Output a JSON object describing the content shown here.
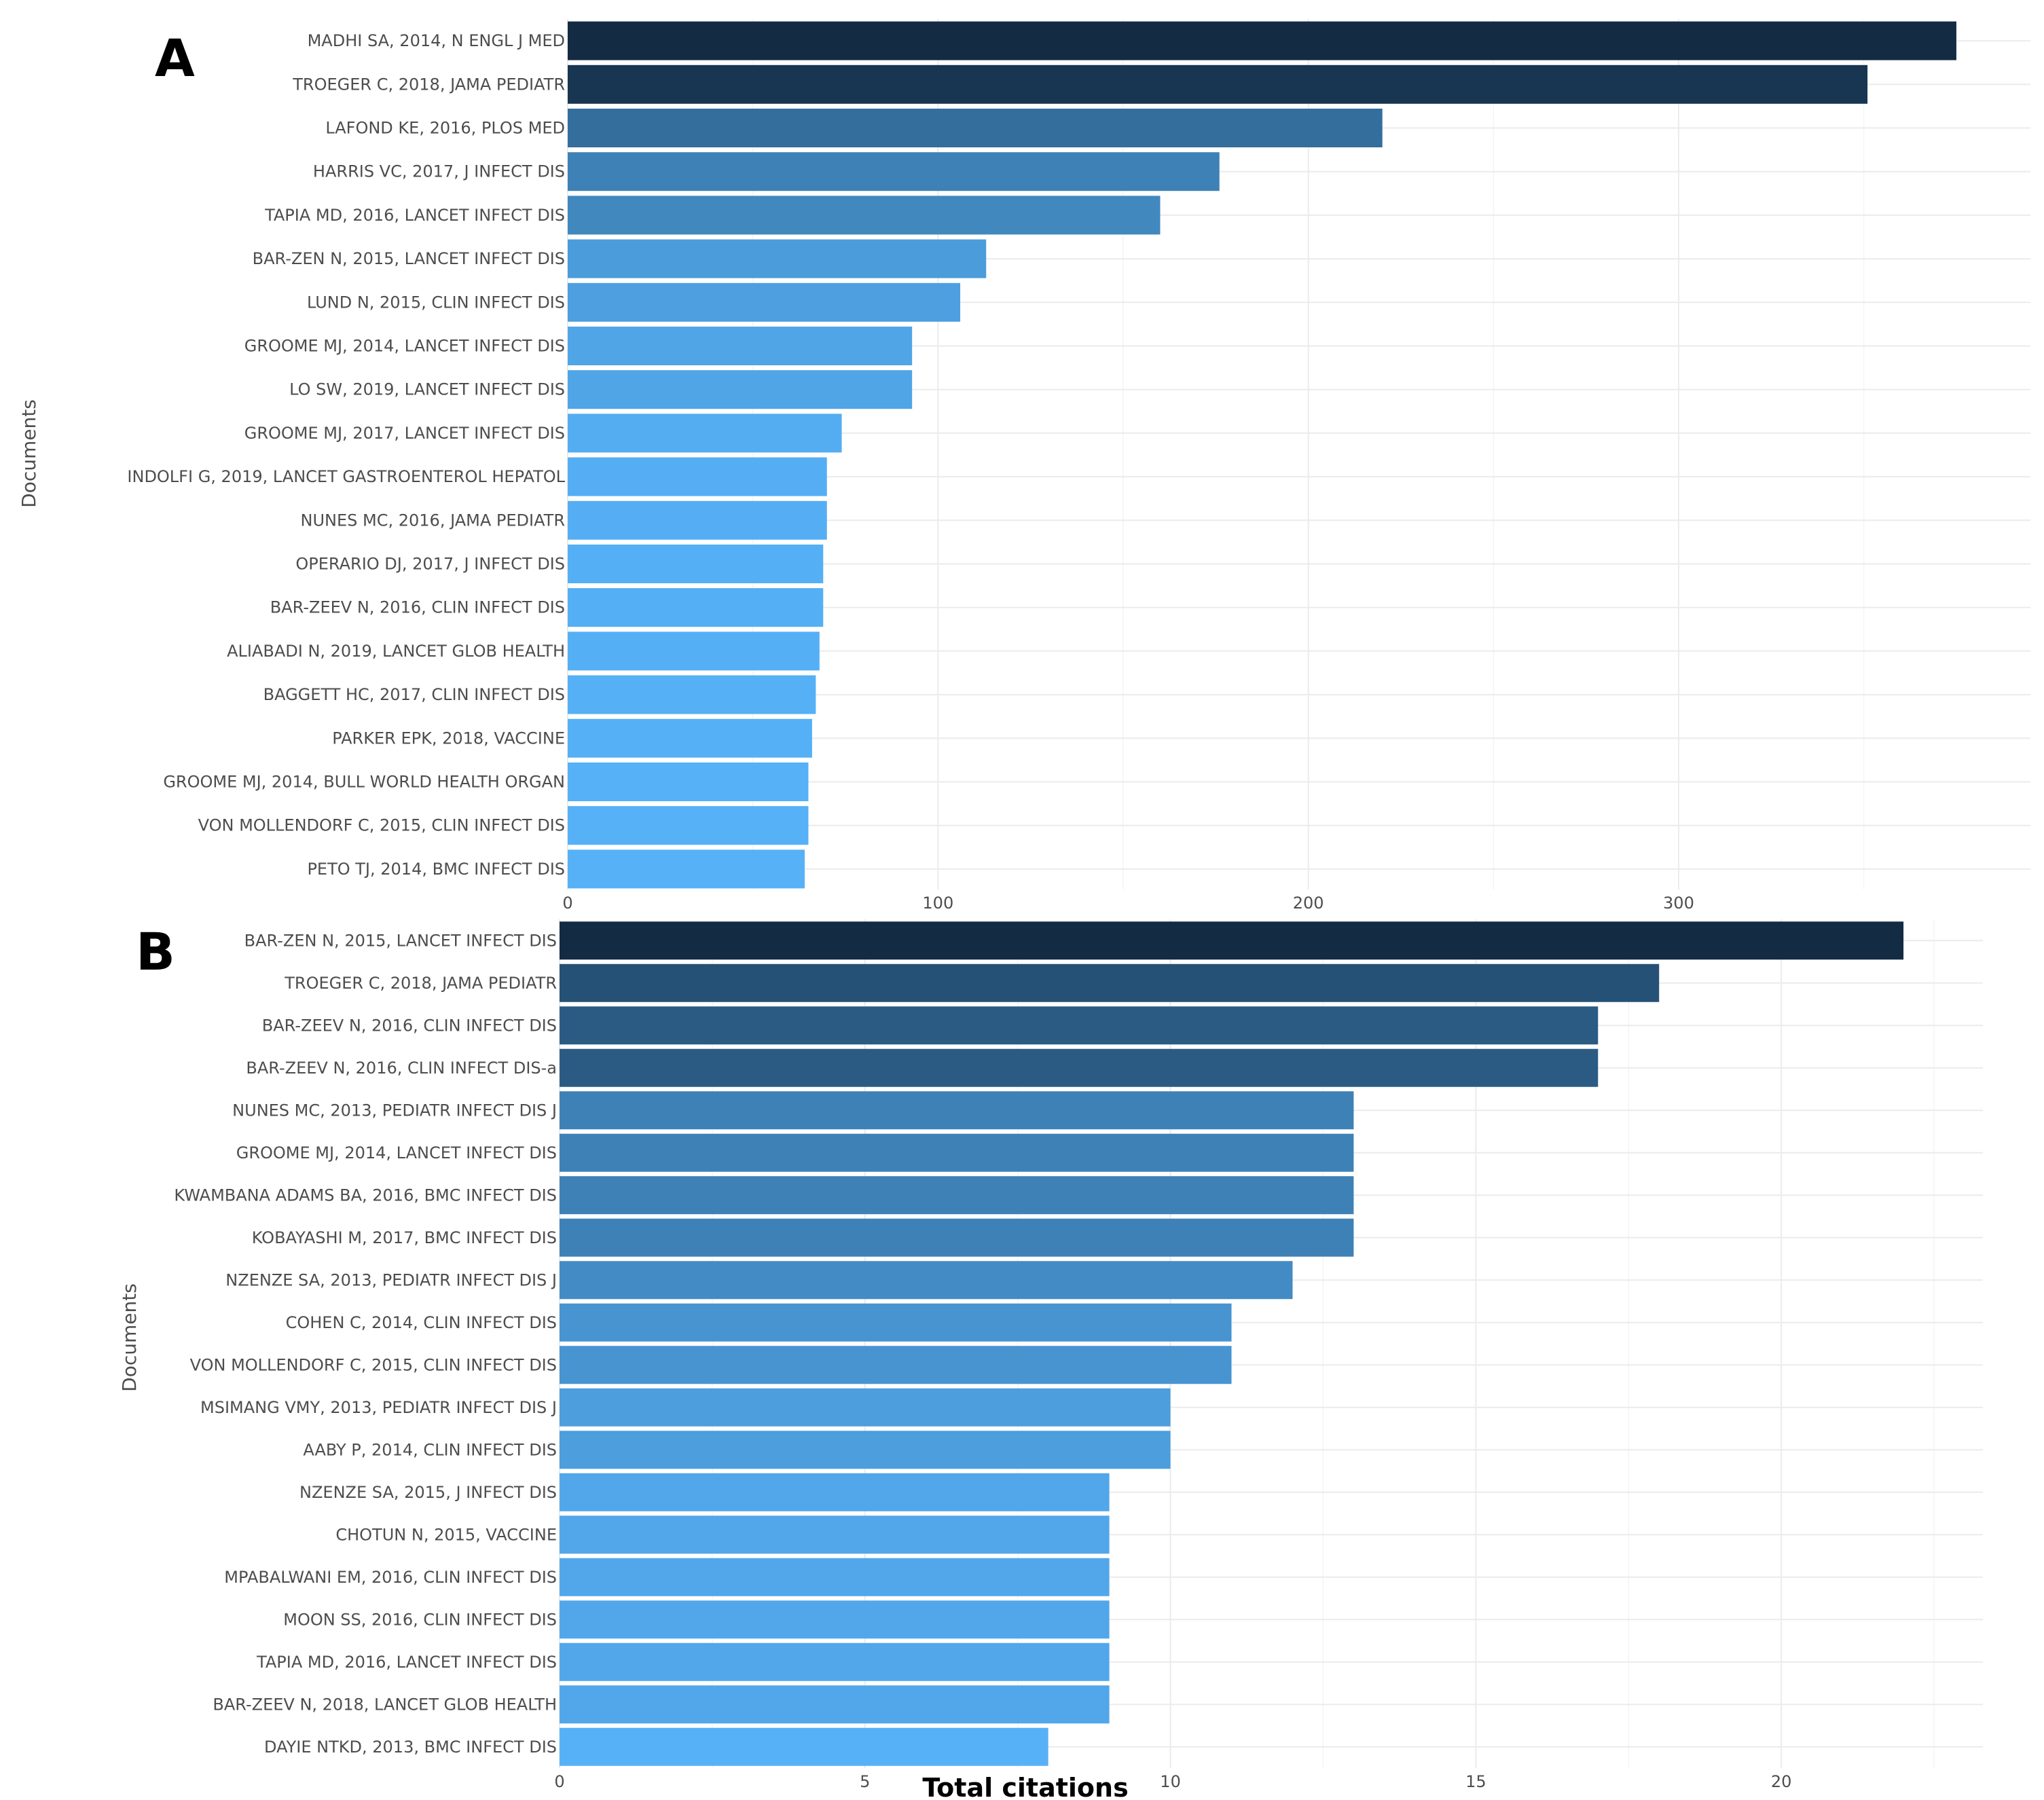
{
  "chart_data": [
    {
      "panel": "A",
      "type": "bar",
      "orientation": "horizontal",
      "ylabel": "Documents",
      "xlim": [
        0,
        395
      ],
      "xticks": [
        0,
        100,
        200,
        300
      ],
      "categories": [
        "MADHI SA, 2014, N ENGL J MED",
        "TROEGER C, 2018, JAMA PEDIATR",
        "LAFOND KE, 2016, PLOS MED",
        "HARRIS VC, 2017, J INFECT DIS",
        "TAPIA MD, 2016, LANCET INFECT DIS",
        "BAR-ZEN N, 2015, LANCET INFECT DIS",
        "LUND N, 2015, CLIN INFECT DIS",
        "GROOME MJ, 2014, LANCET INFECT DIS",
        "LO SW, 2019, LANCET INFECT DIS",
        "GROOME MJ, 2017, LANCET INFECT DIS",
        "INDOLFI G, 2019, LANCET GASTROENTEROL HEPATOL",
        "NUNES MC, 2016, JAMA PEDIATR",
        "OPERARIO DJ, 2017, J INFECT DIS",
        "BAR-ZEEV N, 2016, CLIN INFECT DIS",
        "ALIABADI N, 2019, LANCET GLOB HEALTH",
        "BAGGETT HC, 2017, CLIN INFECT DIS",
        "PARKER EPK, 2018, VACCINE",
        "GROOME MJ, 2014, BULL WORLD HEALTH ORGAN",
        "VON MOLLENDORF C, 2015, CLIN INFECT DIS",
        "PETO TJ, 2014, BMC INFECT DIS"
      ],
      "values": [
        375,
        351,
        220,
        176,
        160,
        113,
        106,
        93,
        93,
        74,
        70,
        70,
        69,
        69,
        68,
        67,
        66,
        65,
        65,
        64
      ]
    },
    {
      "panel": "B",
      "type": "bar",
      "orientation": "horizontal",
      "xlabel": "Total citations",
      "ylabel": "Documents",
      "xlim": [
        0,
        23.3
      ],
      "xticks": [
        0,
        5,
        10,
        15,
        20
      ],
      "categories": [
        "BAR-ZEN N, 2015, LANCET INFECT DIS",
        "TROEGER C, 2018, JAMA PEDIATR",
        "BAR-ZEEV N, 2016, CLIN INFECT DIS",
        "BAR-ZEEV N, 2016, CLIN INFECT DIS-a",
        "NUNES MC, 2013, PEDIATR INFECT DIS J",
        "GROOME MJ, 2014, LANCET INFECT DIS",
        "KWAMBANA ADAMS BA, 2016, BMC INFECT DIS",
        "KOBAYASHI M, 2017, BMC INFECT DIS",
        "NZENZE SA, 2013, PEDIATR INFECT DIS J",
        "COHEN C, 2014, CLIN INFECT DIS",
        "VON MOLLENDORF C, 2015, CLIN INFECT DIS",
        "MSIMANG VMY, 2013, PEDIATR INFECT DIS J",
        "AABY P, 2014, CLIN INFECT DIS",
        "NZENZE SA, 2015, J INFECT DIS",
        "CHOTUN N, 2015, VACCINE",
        "MPABALWANI EM, 2016, CLIN INFECT DIS",
        "MOON SS, 2016, CLIN INFECT DIS",
        "TAPIA MD, 2016, LANCET INFECT DIS",
        "BAR-ZEEV N, 2018, LANCET GLOB HEALTH",
        "DAYIE NTKD, 2013, BMC INFECT DIS"
      ],
      "values": [
        22,
        18,
        17,
        17,
        13,
        13,
        13,
        13,
        12,
        11,
        11,
        10,
        10,
        9,
        9,
        9,
        9,
        9,
        9,
        8
      ]
    }
  ],
  "colors": {
    "dark": "#132b43",
    "light": "#56b1f7",
    "grid": "#ebebeb",
    "text": "#4d4d4d"
  }
}
